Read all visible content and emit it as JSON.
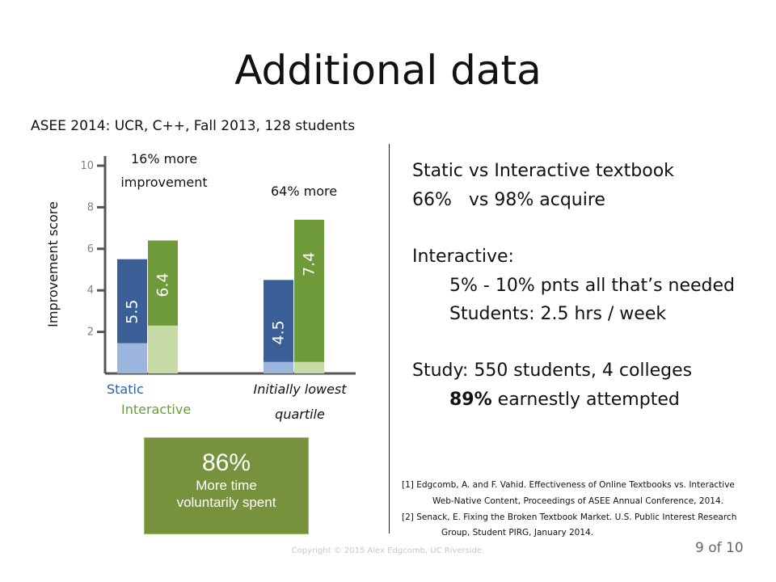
{
  "title": "Additional data",
  "subtitle": "ASEE 2014: UCR, C++, Fall 2013, 128 students",
  "chart_data": {
    "type": "bar",
    "ylabel": "Improvement score",
    "ylim": [
      0,
      10
    ],
    "yticks": [
      "2",
      "4",
      "6",
      "8",
      "10"
    ],
    "groups": [
      {
        "label": "Static",
        "static": 5.5,
        "interactive": 6.4,
        "static_label": "5.5",
        "interactive_label": "6.4",
        "annotation": [
          "16% more",
          "improvement"
        ]
      },
      {
        "label": "Initially lowest quartile",
        "label_lines": [
          "Initially lowest",
          "quartile"
        ],
        "static": 4.5,
        "interactive": 7.4,
        "static_label": "4.5",
        "interactive_label": "7.4",
        "annotation": [
          "64% more"
        ]
      }
    ],
    "legend": [
      "Static",
      "Interactive"
    ],
    "colors": {
      "static": "#3a5f97",
      "static_light": "#9bb5dc",
      "interactive": "#6e9a3a",
      "interactive_light": "#c7dba7",
      "static_text": "#2e5fa8",
      "interactive_text": "#6b9a3a"
    }
  },
  "right": {
    "line1": "Static vs Interactive textbook",
    "line2": "66%   vs 98% acquire",
    "line3": "Interactive:",
    "line4": "5% - 10% pnts all that’s needed",
    "line5": "Students: 2.5 hrs / week",
    "line6": "Study: 550 students, 4 colleges",
    "line7_bold": "89%",
    "line7_rest": " earnestly attempted"
  },
  "callout": {
    "pct": "86%",
    "line1": "More time",
    "line2": "voluntarily spent"
  },
  "refs": {
    "r1a": "[1] Edgcomb, A. and F. Vahid. Effectiveness of Online Textbooks vs. Interactive",
    "r1b": "Web-Native Content, Proceedings of ASEE Annual Conference, 2014.",
    "r2a": "[2] Senack, E. Fixing the Broken Textbook Market. U.S. Public Interest Research",
    "r2b": "Group, Student PIRG, January 2014."
  },
  "footer": {
    "copyright": "Copyright © 2015 Alex Edgcomb, UC Riverside.",
    "page": "9 of 10"
  }
}
